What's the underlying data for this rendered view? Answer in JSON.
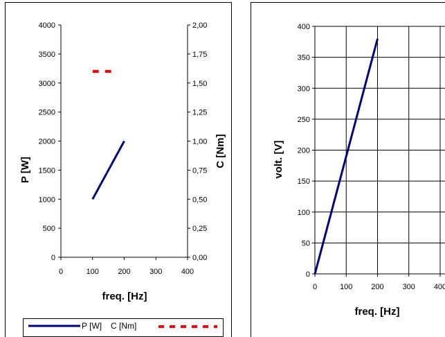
{
  "chart_data": [
    {
      "type": "line",
      "xlabel": "freq. [Hz]",
      "ylabel": "P [W]",
      "y2label": "C [Nm]",
      "xlim": [
        0,
        400
      ],
      "ylim": [
        0,
        4000
      ],
      "y2lim": [
        0,
        2.0
      ],
      "grid": false,
      "x_ticks": [
        "0",
        "100",
        "200",
        "300",
        "400"
      ],
      "y_ticks": [
        "0",
        "500",
        "1000",
        "1500",
        "2000",
        "2500",
        "3000",
        "3500",
        "4000"
      ],
      "y2_ticks": [
        "0,00",
        "0,25",
        "0,50",
        "0,75",
        "1,00",
        "1,25",
        "1,50",
        "1,75",
        "2,00"
      ],
      "series": [
        {
          "name": "P [W]",
          "axis": "left",
          "color": "#000080",
          "style": "solid",
          "x": [
            100,
            200
          ],
          "y": [
            1000,
            2000
          ]
        },
        {
          "name": "C [Nm]",
          "axis": "right",
          "color": "#ff0000",
          "style": "dashed",
          "x": [
            100,
            160
          ],
          "y": [
            1.6,
            1.6
          ]
        }
      ],
      "legend": {
        "placement": "bottom"
      }
    },
    {
      "type": "line",
      "xlabel": "freq. [Hz]",
      "ylabel": "volt. [V]",
      "xlim": [
        0,
        400
      ],
      "ylim": [
        0,
        400
      ],
      "grid": true,
      "x_ticks": [
        "0",
        "100",
        "200",
        "300",
        "400"
      ],
      "y_ticks": [
        "0",
        "50",
        "100",
        "150",
        "200",
        "250",
        "300",
        "350",
        "400"
      ],
      "series": [
        {
          "color": "#000080",
          "style": "solid",
          "x": [
            0,
            200
          ],
          "y": [
            0,
            380
          ]
        }
      ]
    }
  ]
}
